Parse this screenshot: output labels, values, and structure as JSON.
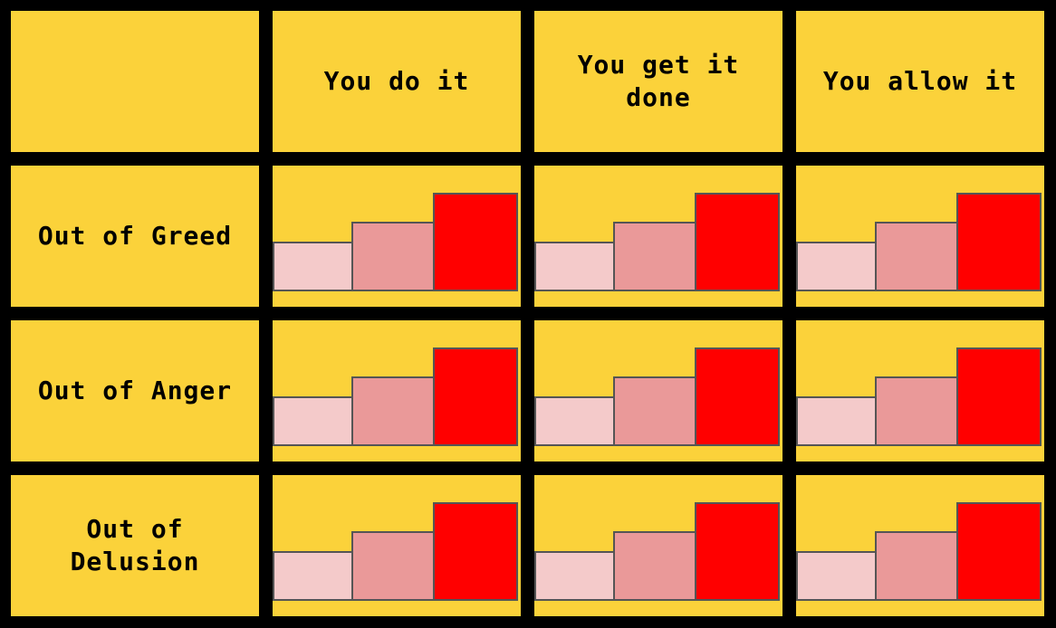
{
  "columns": [
    "You do it",
    "You get it\ndone",
    "You allow it"
  ],
  "rows": [
    "Out of Greed",
    "Out of Anger",
    "Out of\nDelusion"
  ],
  "colors": {
    "background": "#000000",
    "cell": "#FBD23A",
    "bar_outline": "#555555",
    "bar_levels": [
      "#F4CACA",
      "#EA9999",
      "#FF0000"
    ]
  },
  "bar_levels": [
    1,
    2,
    3
  ]
}
